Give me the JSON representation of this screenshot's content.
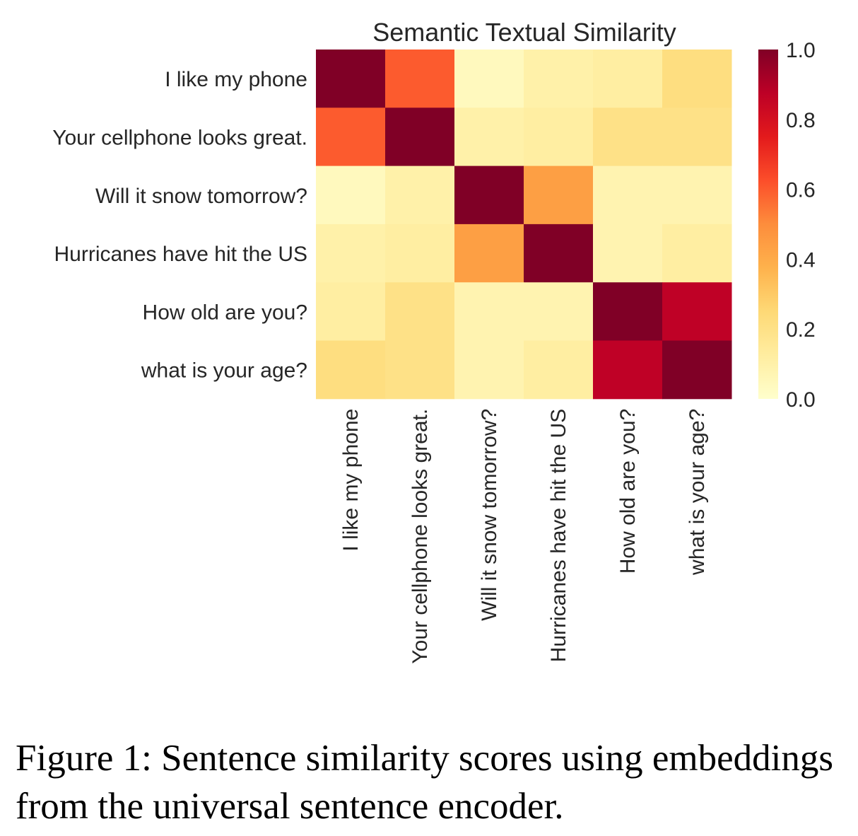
{
  "chart_data": {
    "type": "heatmap",
    "title": "Semantic Textual Similarity",
    "xlabel": "",
    "ylabel": "",
    "rows": [
      "I like my phone",
      "Your cellphone looks great.",
      "Will it snow tomorrow?",
      "Hurricanes have hit the US",
      "How old are you?",
      "what is your age?"
    ],
    "columns": [
      "I like my phone",
      "Your cellphone looks great.",
      "Will it snow tomorrow?",
      "Hurricanes have hit the US",
      "How old are you?",
      "what is your age?"
    ],
    "values": [
      [
        1.0,
        0.6,
        0.04,
        0.1,
        0.12,
        0.22
      ],
      [
        0.6,
        1.0,
        0.1,
        0.12,
        0.2,
        0.2
      ],
      [
        0.04,
        0.1,
        1.0,
        0.44,
        0.08,
        0.08
      ],
      [
        0.1,
        0.12,
        0.44,
        1.0,
        0.08,
        0.12
      ],
      [
        0.12,
        0.2,
        0.08,
        0.08,
        1.0,
        0.87
      ],
      [
        0.22,
        0.2,
        0.08,
        0.12,
        0.87,
        1.0
      ]
    ],
    "vmin": 0.0,
    "vmax": 1.0,
    "colormap": "YlOrRd",
    "colorbar": {
      "ticks": [
        0.0,
        0.2,
        0.4,
        0.6,
        0.8,
        1.0
      ],
      "tick_labels": [
        "0.0",
        "0.2",
        "0.4",
        "0.6",
        "0.8",
        "1.0"
      ],
      "placement": "right"
    },
    "grid": false
  },
  "caption": "Figure 1: Sentence similarity scores using embeddings from the universal sentence encoder."
}
